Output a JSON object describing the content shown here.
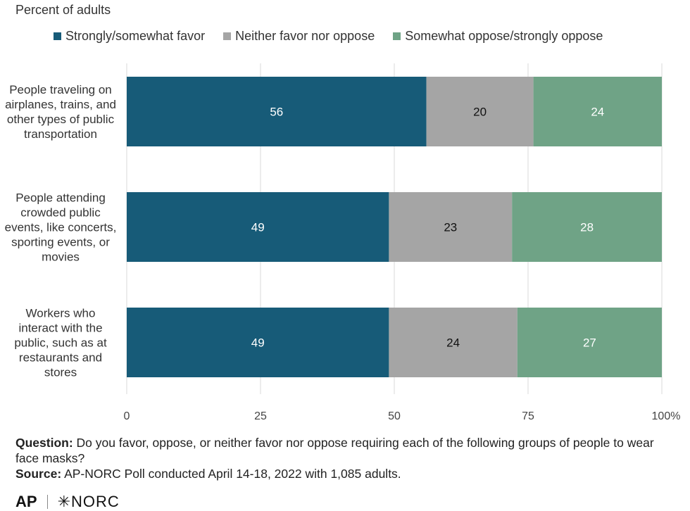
{
  "chart_data": {
    "type": "bar",
    "orientation": "horizontal",
    "stacked": true,
    "subtitle": "Percent of adults",
    "categories": [
      "People traveling on airplanes, trains, and other types of public transportation",
      "People attending crowded public events, like concerts, sporting events, or movies",
      "Workers who interact with the public, such as at restaurants and stores"
    ],
    "category_lines": [
      [
        "People traveling on",
        "airplanes, trains, and",
        "other types of public",
        "transportation"
      ],
      [
        "People attending",
        "crowded public",
        "events, like concerts,",
        "sporting events, or",
        "movies"
      ],
      [
        "Workers who",
        "interact with the",
        "public, such as at",
        "restaurants and",
        "stores"
      ]
    ],
    "series": [
      {
        "name": "Strongly/somewhat favor",
        "values": [
          56,
          49,
          49
        ],
        "color": "#175b78",
        "label_color": "#ffffff"
      },
      {
        "name": "Neither favor nor oppose",
        "values": [
          20,
          23,
          24
        ],
        "color": "#a5a5a5",
        "label_color": "#111111"
      },
      {
        "name": "Somewhat oppose/strongly oppose",
        "values": [
          24,
          28,
          27
        ],
        "color": "#6fa386",
        "label_color": "#ffffff"
      }
    ],
    "xlim": [
      0,
      100
    ],
    "xticks": [
      "0",
      "25",
      "50",
      "75",
      "100%"
    ],
    "grid": true,
    "legend_position": "top"
  },
  "footer": {
    "question_label": "Question:",
    "question_text": "Do you favor, oppose, or neither favor nor oppose requiring each of the following groups of people to wear face masks?",
    "source_label": "Source:",
    "source_text": "AP-NORC Poll conducted April 14-18, 2022 with 1,085 adults."
  },
  "logo": {
    "ap": "AP",
    "norc": "NORC"
  }
}
